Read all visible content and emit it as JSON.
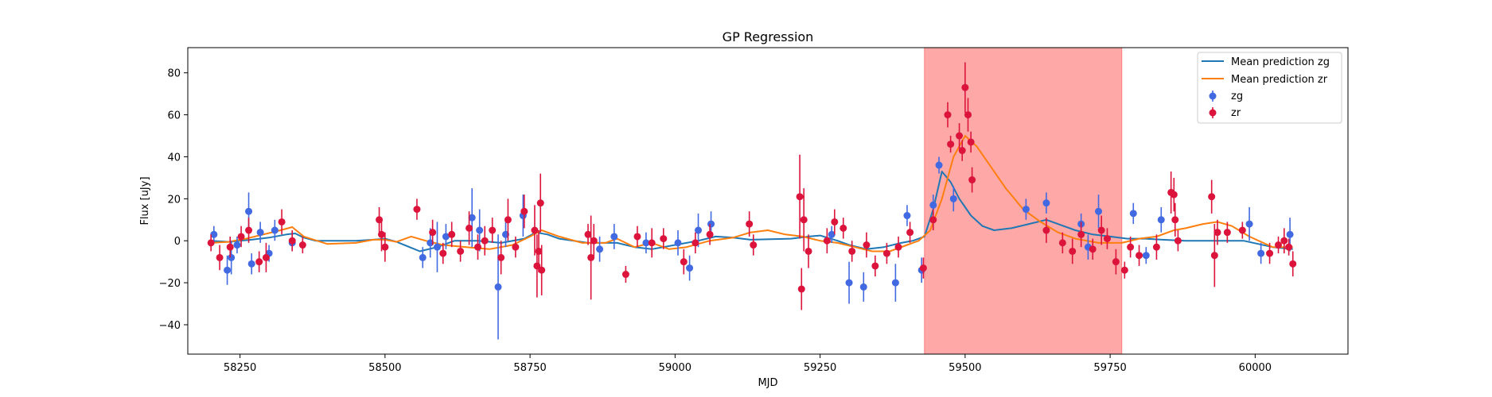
{
  "chart_data": {
    "type": "scatter",
    "title": "GP Regression",
    "xlabel": "MJD",
    "ylabel": "Flux [uJy]",
    "xlim": [
      58160,
      60160
    ],
    "ylim": [
      -54,
      92
    ],
    "xticks": [
      58250,
      58500,
      58750,
      59000,
      59250,
      59500,
      59750,
      60000
    ],
    "yticks": [
      -40,
      -20,
      0,
      20,
      40,
      60,
      80
    ],
    "grid": false,
    "legend_position": "top-right",
    "shaded_region": {
      "x": [
        59430,
        59770
      ],
      "color": "#ffa8a8"
    },
    "series": [
      {
        "name": "Mean prediction zg",
        "kind": "line",
        "color": "#1f77b4",
        "points": [
          [
            58200,
            0
          ],
          [
            58230,
            -0.5
          ],
          [
            58270,
            0.5
          ],
          [
            58300,
            1.5
          ],
          [
            58330,
            3
          ],
          [
            58345,
            3.5
          ],
          [
            58360,
            1.5
          ],
          [
            58380,
            0
          ],
          [
            58450,
            0
          ],
          [
            58480,
            0.5
          ],
          [
            58500,
            1
          ],
          [
            58520,
            -0.5
          ],
          [
            58560,
            -5
          ],
          [
            58590,
            -3
          ],
          [
            58620,
            0
          ],
          [
            58660,
            0
          ],
          [
            58700,
            -1
          ],
          [
            58740,
            1
          ],
          [
            58760,
            4
          ],
          [
            58780,
            3
          ],
          [
            58800,
            1
          ],
          [
            58850,
            -1
          ],
          [
            58900,
            -1
          ],
          [
            58930,
            -3
          ],
          [
            58960,
            -4
          ],
          [
            59000,
            -2
          ],
          [
            59040,
            0
          ],
          [
            59070,
            2
          ],
          [
            59100,
            1.5
          ],
          [
            59130,
            0.5
          ],
          [
            59200,
            1
          ],
          [
            59230,
            2
          ],
          [
            59250,
            2.5
          ],
          [
            59280,
            0
          ],
          [
            59300,
            -2
          ],
          [
            59330,
            -4
          ],
          [
            59360,
            -3
          ],
          [
            59390,
            -1
          ],
          [
            59410,
            0
          ],
          [
            59430,
            2
          ],
          [
            59445,
            15
          ],
          [
            59460,
            33
          ],
          [
            59475,
            28
          ],
          [
            59490,
            20
          ],
          [
            59510,
            12
          ],
          [
            59530,
            7
          ],
          [
            59550,
            5
          ],
          [
            59580,
            6
          ],
          [
            59610,
            8
          ],
          [
            59640,
            10
          ],
          [
            59660,
            8
          ],
          [
            59690,
            5
          ],
          [
            59720,
            3
          ],
          [
            59750,
            2
          ],
          [
            59780,
            1
          ],
          [
            59810,
            1
          ],
          [
            59840,
            0.5
          ],
          [
            59880,
            0
          ],
          [
            59930,
            0
          ],
          [
            59980,
            0
          ],
          [
            60030,
            -3
          ],
          [
            60065,
            -4
          ]
        ]
      },
      {
        "name": "Mean prediction zr",
        "kind": "line",
        "color": "#ff7f0e",
        "points": [
          [
            58200,
            -1
          ],
          [
            58230,
            -0.5
          ],
          [
            58260,
            1
          ],
          [
            58290,
            3
          ],
          [
            58320,
            5
          ],
          [
            58340,
            6.5
          ],
          [
            58360,
            2
          ],
          [
            58400,
            -1.5
          ],
          [
            58450,
            -1
          ],
          [
            58480,
            0.5
          ],
          [
            58500,
            0.5
          ],
          [
            58520,
            -0.5
          ],
          [
            58545,
            2
          ],
          [
            58570,
            0
          ],
          [
            58600,
            -2
          ],
          [
            58640,
            -3
          ],
          [
            58680,
            -4
          ],
          [
            58720,
            -2
          ],
          [
            58750,
            2
          ],
          [
            58770,
            5
          ],
          [
            58800,
            2
          ],
          [
            58840,
            -1
          ],
          [
            58880,
            -1
          ],
          [
            58900,
            1
          ],
          [
            58930,
            -3
          ],
          [
            58960,
            -1
          ],
          [
            58990,
            -4
          ],
          [
            59020,
            -3
          ],
          [
            59060,
            0
          ],
          [
            59100,
            1.5
          ],
          [
            59130,
            4
          ],
          [
            59160,
            5
          ],
          [
            59190,
            3
          ],
          [
            59220,
            2
          ],
          [
            59250,
            0
          ],
          [
            59280,
            -1
          ],
          [
            59310,
            -3
          ],
          [
            59340,
            -5
          ],
          [
            59370,
            -5
          ],
          [
            59400,
            -2
          ],
          [
            59420,
            0
          ],
          [
            59440,
            5
          ],
          [
            59460,
            20
          ],
          [
            59480,
            40
          ],
          [
            59500,
            50
          ],
          [
            59520,
            45
          ],
          [
            59545,
            35
          ],
          [
            59570,
            25
          ],
          [
            59600,
            15
          ],
          [
            59630,
            9
          ],
          [
            59660,
            4
          ],
          [
            59690,
            1
          ],
          [
            59730,
            -1
          ],
          [
            59770,
            -1
          ],
          [
            59800,
            1
          ],
          [
            59830,
            2
          ],
          [
            59860,
            5
          ],
          [
            59880,
            6
          ],
          [
            59910,
            8
          ],
          [
            59935,
            9
          ],
          [
            59960,
            7
          ],
          [
            59990,
            2
          ],
          [
            60030,
            -3
          ],
          [
            60065,
            -3
          ]
        ]
      },
      {
        "name": "zg",
        "kind": "errorbar",
        "color": "#4169e1",
        "points": [
          [
            58205,
            3,
            4
          ],
          [
            58228,
            -14,
            7
          ],
          [
            58235,
            -8,
            8
          ],
          [
            58245,
            -2,
            4
          ],
          [
            58265,
            14,
            9
          ],
          [
            58270,
            -11,
            5
          ],
          [
            58285,
            4,
            5
          ],
          [
            58300,
            -6,
            4
          ],
          [
            58310,
            5,
            5
          ],
          [
            58340,
            -1,
            4
          ],
          [
            58565,
            -8,
            5
          ],
          [
            58578,
            -1,
            7
          ],
          [
            58590,
            -3,
            12
          ],
          [
            58605,
            2,
            6
          ],
          [
            58650,
            11,
            14
          ],
          [
            58663,
            5,
            10
          ],
          [
            58695,
            -22,
            25
          ],
          [
            58708,
            3,
            6
          ],
          [
            58738,
            12,
            10
          ],
          [
            58870,
            -4,
            6
          ],
          [
            58895,
            2,
            6
          ],
          [
            58950,
            -1,
            5
          ],
          [
            59005,
            -1,
            6
          ],
          [
            59025,
            -13,
            6
          ],
          [
            59040,
            5,
            8
          ],
          [
            59062,
            8,
            6
          ],
          [
            59270,
            3,
            4
          ],
          [
            59300,
            -20,
            10
          ],
          [
            59325,
            -22,
            7
          ],
          [
            59380,
            -20,
            9
          ],
          [
            59400,
            12,
            5
          ],
          [
            59425,
            -14,
            6
          ],
          [
            59445,
            17,
            5
          ],
          [
            59455,
            36,
            4
          ],
          [
            59480,
            20,
            6
          ],
          [
            59605,
            15,
            5
          ],
          [
            59640,
            18,
            5
          ],
          [
            59700,
            8,
            5
          ],
          [
            59712,
            -3,
            6
          ],
          [
            59730,
            14,
            8
          ],
          [
            59790,
            13,
            5
          ],
          [
            59812,
            -7,
            4
          ],
          [
            59838,
            10,
            6
          ],
          [
            59990,
            8,
            8
          ],
          [
            60010,
            -6,
            5
          ],
          [
            60060,
            3,
            8
          ]
        ]
      },
      {
        "name": "zr",
        "kind": "errorbar",
        "color": "#dc143c",
        "points": [
          [
            58200,
            -1,
            4
          ],
          [
            58215,
            -8,
            6
          ],
          [
            58233,
            -3,
            5
          ],
          [
            58252,
            2,
            5
          ],
          [
            58265,
            5,
            6
          ],
          [
            58283,
            -10,
            5
          ],
          [
            58295,
            -8,
            7
          ],
          [
            58322,
            9,
            6
          ],
          [
            58340,
            0,
            5
          ],
          [
            58358,
            -2,
            4
          ],
          [
            58490,
            10,
            6
          ],
          [
            58494,
            3,
            8
          ],
          [
            58500,
            -3,
            7
          ],
          [
            58555,
            15,
            5
          ],
          [
            58582,
            4,
            6
          ],
          [
            58600,
            -6,
            5
          ],
          [
            58615,
            3,
            6
          ],
          [
            58630,
            -5,
            5
          ],
          [
            58645,
            6,
            8
          ],
          [
            58660,
            -3,
            6
          ],
          [
            58672,
            0,
            7
          ],
          [
            58685,
            5,
            6
          ],
          [
            58700,
            -8,
            8
          ],
          [
            58712,
            10,
            10
          ],
          [
            58725,
            -3,
            5
          ],
          [
            58740,
            14,
            8
          ],
          [
            58758,
            5,
            12
          ],
          [
            58762,
            -12,
            15
          ],
          [
            58765,
            -5,
            10
          ],
          [
            58768,
            18,
            14
          ],
          [
            58770,
            -14,
            12
          ],
          [
            58850,
            3,
            5
          ],
          [
            58855,
            -8,
            20
          ],
          [
            58860,
            0,
            8
          ],
          [
            58915,
            -16,
            4
          ],
          [
            58935,
            2,
            5
          ],
          [
            58960,
            -1,
            7
          ],
          [
            58980,
            1,
            5
          ],
          [
            59015,
            -10,
            6
          ],
          [
            59035,
            -1,
            5
          ],
          [
            59060,
            3,
            5
          ],
          [
            59128,
            8,
            6
          ],
          [
            59135,
            -2,
            5
          ],
          [
            59215,
            21,
            20
          ],
          [
            59218,
            -23,
            10
          ],
          [
            59222,
            10,
            15
          ],
          [
            59230,
            -5,
            8
          ],
          [
            59262,
            0,
            6
          ],
          [
            59275,
            9,
            6
          ],
          [
            59290,
            6,
            5
          ],
          [
            59305,
            -5,
            5
          ],
          [
            59330,
            -2,
            6
          ],
          [
            59345,
            -12,
            5
          ],
          [
            59365,
            -6,
            5
          ],
          [
            59385,
            -3,
            5
          ],
          [
            59405,
            4,
            5
          ],
          [
            59428,
            -13,
            5
          ],
          [
            59445,
            10,
            5
          ],
          [
            59470,
            60,
            6
          ],
          [
            59475,
            46,
            4
          ],
          [
            59490,
            50,
            6
          ],
          [
            59495,
            43,
            5
          ],
          [
            59500,
            73,
            12
          ],
          [
            59505,
            60,
            8
          ],
          [
            59510,
            47,
            5
          ],
          [
            59512,
            29,
            6
          ],
          [
            59640,
            5,
            6
          ],
          [
            59668,
            -1,
            5
          ],
          [
            59685,
            -5,
            6
          ],
          [
            59700,
            3,
            6
          ],
          [
            59720,
            -4,
            5
          ],
          [
            59735,
            5,
            7
          ],
          [
            59745,
            1,
            5
          ],
          [
            59760,
            -10,
            6
          ],
          [
            59775,
            -14,
            4
          ],
          [
            59785,
            -3,
            5
          ],
          [
            59800,
            -7,
            5
          ],
          [
            59830,
            -3,
            6
          ],
          [
            59855,
            23,
            10
          ],
          [
            59860,
            22,
            8
          ],
          [
            59862,
            10,
            8
          ],
          [
            59867,
            0,
            5
          ],
          [
            59925,
            21,
            8
          ],
          [
            59930,
            -7,
            15
          ],
          [
            59935,
            4,
            6
          ],
          [
            59952,
            4,
            5
          ],
          [
            59978,
            5,
            4
          ],
          [
            60025,
            -6,
            5
          ],
          [
            60040,
            -2,
            4
          ],
          [
            60050,
            0,
            6
          ],
          [
            60058,
            -3,
            4
          ],
          [
            60065,
            -11,
            6
          ]
        ]
      }
    ]
  }
}
